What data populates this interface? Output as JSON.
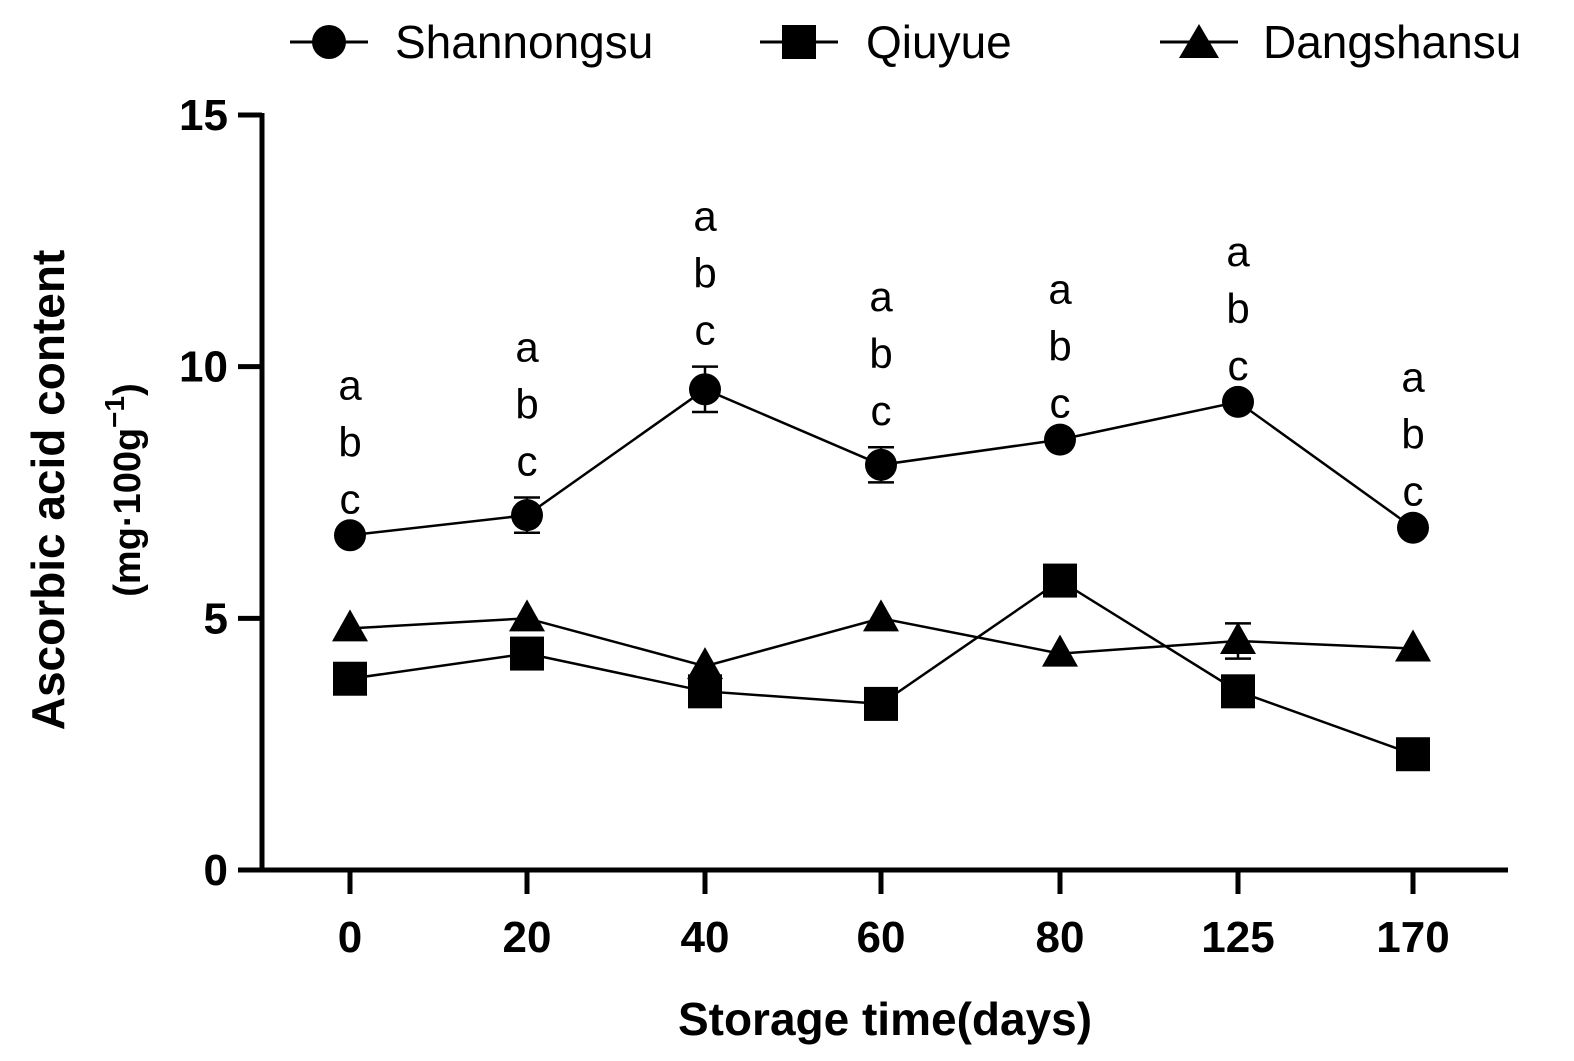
{
  "chart_data": {
    "type": "line",
    "title": "",
    "xlabel": "Storage time(days)",
    "ylabel": "Ascorbic acid content",
    "ylabel_unit_prefix": "(mg·100g",
    "ylabel_unit_exponent": "−1",
    "ylabel_unit_suffix": ")",
    "ylim": [
      0,
      15
    ],
    "yticks": [
      "0",
      "5",
      "10",
      "15"
    ],
    "ytick_values": [
      0,
      5,
      10,
      15
    ],
    "categories": [
      "0",
      "20",
      "40",
      "60",
      "80",
      "125",
      "170"
    ],
    "grid": false,
    "legend_position": "top",
    "series": [
      {
        "name": "Shannongsu",
        "marker": "circle",
        "values": [
          6.65,
          7.05,
          9.55,
          8.05,
          8.55,
          9.3,
          6.8
        ],
        "errors": [
          0.1,
          0.35,
          0.45,
          0.35,
          0.1,
          0.1,
          0.1
        ]
      },
      {
        "name": "Qiuyue",
        "marker": "square",
        "values": [
          3.8,
          4.3,
          3.55,
          3.3,
          5.75,
          3.55,
          2.3
        ],
        "errors": [
          0.1,
          0.15,
          0.1,
          0.1,
          0.15,
          0.1,
          0.1
        ]
      },
      {
        "name": "Dangshansu",
        "marker": "triangle",
        "values": [
          4.8,
          5.0,
          4.05,
          5.0,
          4.3,
          4.55,
          4.4
        ],
        "errors": [
          0.1,
          0.1,
          0.1,
          0.1,
          0.1,
          0.35,
          0.1
        ]
      }
    ],
    "significance_letters": [
      [
        "a",
        "b",
        "c"
      ],
      [
        "a",
        "b",
        "c"
      ],
      [
        "a",
        "b",
        "c"
      ],
      [
        "a",
        "b",
        "c"
      ],
      [
        "a",
        "b",
        "c"
      ],
      [
        "a",
        "b",
        "c"
      ],
      [
        "a",
        "b",
        "c"
      ]
    ]
  }
}
